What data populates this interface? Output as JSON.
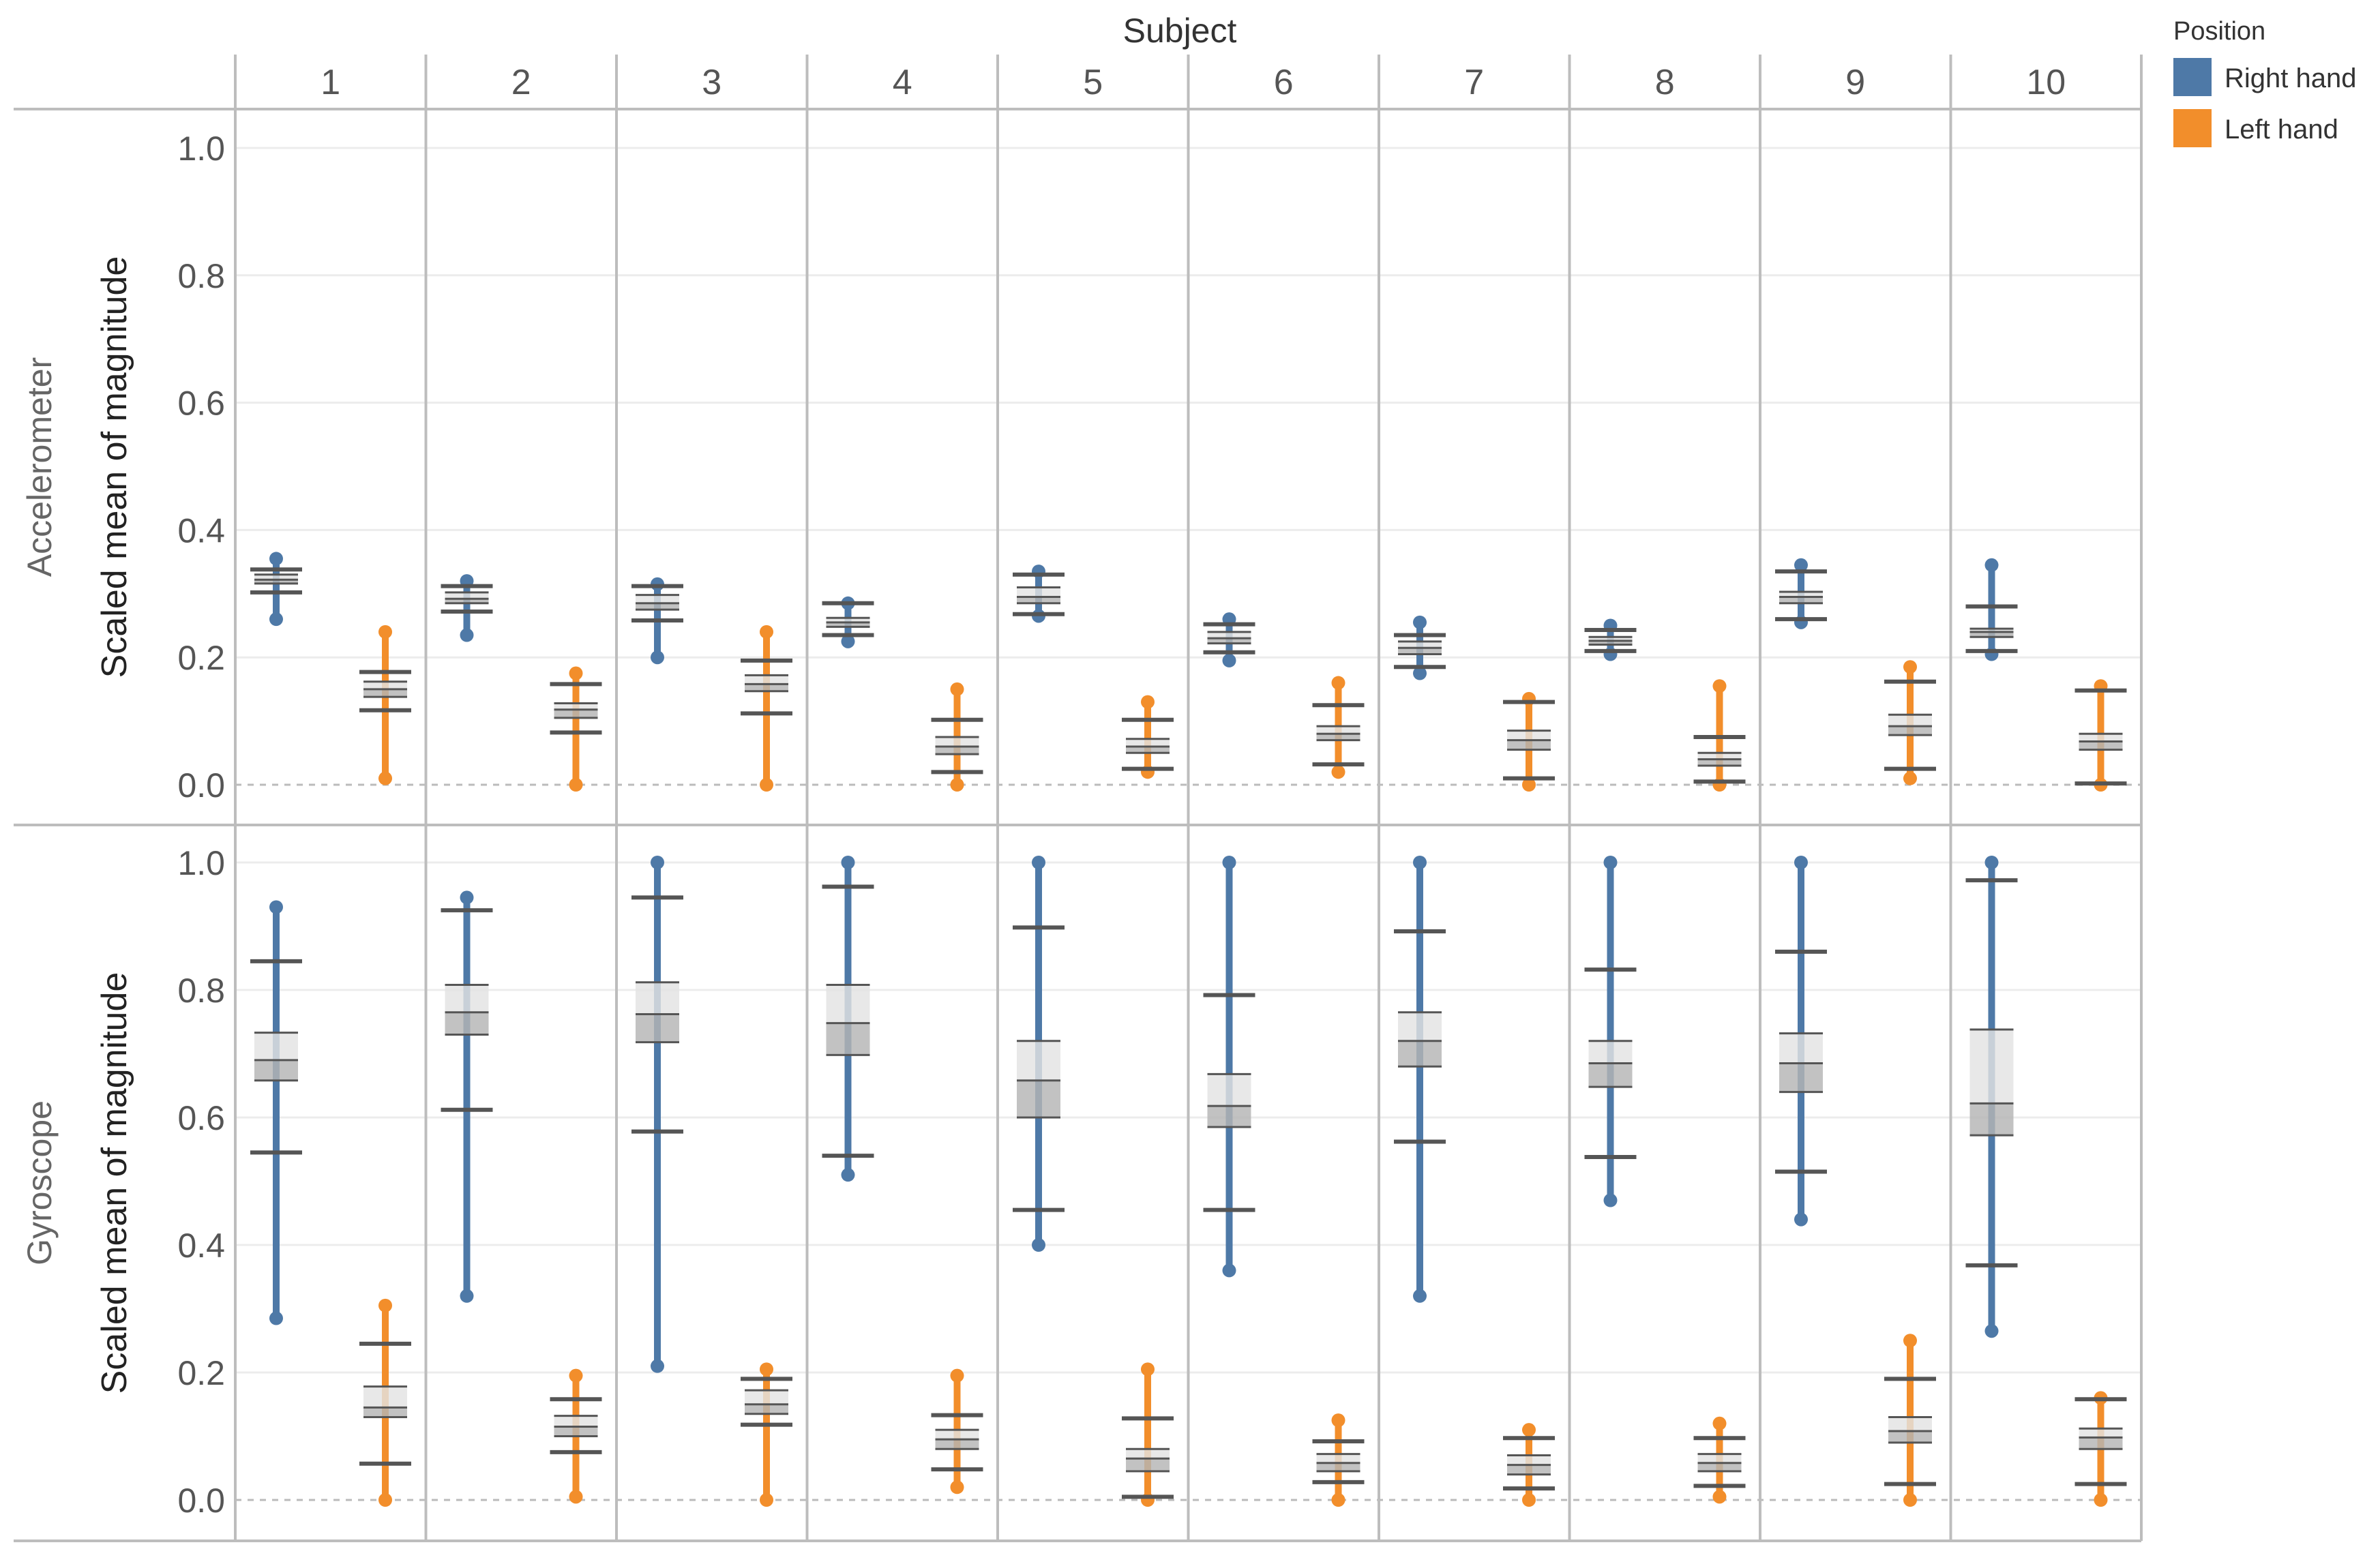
{
  "chart_data": {
    "type": "box-and-dot",
    "column_header": "Subject",
    "subjects": [
      "1",
      "2",
      "3",
      "4",
      "5",
      "6",
      "7",
      "8",
      "9",
      "10"
    ],
    "legend": {
      "title": "Position",
      "items": [
        {
          "label": "Right hand",
          "color": "#4e79a7"
        },
        {
          "label": "Left hand",
          "color": "#f28e2b"
        }
      ]
    },
    "y_axis": {
      "label": "Scaled mean of magnitude",
      "ticks": [
        "0.0",
        "0.2",
        "0.4",
        "0.6",
        "0.8",
        "1.0"
      ],
      "range": [
        0,
        1
      ]
    },
    "panels": [
      {
        "name": "Accelerometer",
        "stats": [
          {
            "right": [
              0.302,
              0.316,
              0.322,
              0.33,
              0.338
            ],
            "left": [
              0.117,
              0.138,
              0.15,
              0.162,
              0.177
            ]
          },
          {
            "right": [
              0.272,
              0.285,
              0.292,
              0.302,
              0.312
            ],
            "left": [
              0.082,
              0.105,
              0.118,
              0.128,
              0.158
            ]
          },
          {
            "right": [
              0.258,
              0.275,
              0.285,
              0.298,
              0.312
            ],
            "left": [
              0.112,
              0.147,
              0.158,
              0.172,
              0.195
            ]
          },
          {
            "right": [
              0.235,
              0.248,
              0.255,
              0.262,
              0.285
            ],
            "left": [
              0.02,
              0.048,
              0.06,
              0.075,
              0.102
            ]
          },
          {
            "right": [
              0.268,
              0.285,
              0.295,
              0.31,
              0.33
            ],
            "left": [
              0.025,
              0.05,
              0.06,
              0.072,
              0.102
            ]
          },
          {
            "right": [
              0.208,
              0.222,
              0.23,
              0.24,
              0.252
            ],
            "left": [
              0.032,
              0.07,
              0.08,
              0.092,
              0.125
            ]
          },
          {
            "right": [
              0.185,
              0.205,
              0.215,
              0.225,
              0.235
            ],
            "left": [
              0.01,
              0.055,
              0.07,
              0.085,
              0.13
            ]
          },
          {
            "right": [
              0.21,
              0.22,
              0.226,
              0.232,
              0.243
            ],
            "left": [
              0.005,
              0.03,
              0.04,
              0.05,
              0.075
            ]
          },
          {
            "right": [
              0.26,
              0.285,
              0.295,
              0.303,
              0.335
            ],
            "left": [
              0.025,
              0.078,
              0.092,
              0.11,
              0.162
            ]
          },
          {
            "right": [
              0.21,
              0.232,
              0.24,
              0.245,
              0.28
            ],
            "left": [
              0.002,
              0.055,
              0.068,
              0.08,
              0.148
            ]
          }
        ],
        "points": [
          {
            "right": [
              0.26,
              0.355
            ],
            "left": [
              0.01,
              0.24
            ]
          },
          {
            "right": [
              0.235,
              0.32
            ],
            "left": [
              0.0,
              0.175
            ]
          },
          {
            "right": [
              0.2,
              0.315
            ],
            "left": [
              0.0,
              0.24
            ]
          },
          {
            "right": [
              0.225,
              0.285
            ],
            "left": [
              0.0,
              0.15
            ]
          },
          {
            "right": [
              0.265,
              0.335
            ],
            "left": [
              0.02,
              0.13
            ]
          },
          {
            "right": [
              0.195,
              0.26
            ],
            "left": [
              0.02,
              0.16
            ]
          },
          {
            "right": [
              0.175,
              0.255
            ],
            "left": [
              0.0,
              0.135
            ]
          },
          {
            "right": [
              0.205,
              0.25
            ],
            "left": [
              0.0,
              0.155
            ]
          },
          {
            "right": [
              0.255,
              0.345
            ],
            "left": [
              0.01,
              0.185
            ]
          },
          {
            "right": [
              0.205,
              0.345
            ],
            "left": [
              0.0,
              0.155
            ]
          }
        ]
      },
      {
        "name": "Gyroscope",
        "stats": [
          {
            "right": [
              0.545,
              0.658,
              0.69,
              0.733,
              0.845
            ],
            "left": [
              0.057,
              0.13,
              0.145,
              0.178,
              0.245
            ]
          },
          {
            "right": [
              0.612,
              0.73,
              0.765,
              0.808,
              0.925
            ],
            "left": [
              0.075,
              0.1,
              0.115,
              0.132,
              0.158
            ]
          },
          {
            "right": [
              0.578,
              0.718,
              0.762,
              0.812,
              0.945
            ],
            "left": [
              0.118,
              0.135,
              0.15,
              0.172,
              0.19
            ]
          },
          {
            "right": [
              0.54,
              0.698,
              0.748,
              0.808,
              0.962
            ],
            "left": [
              0.048,
              0.08,
              0.095,
              0.11,
              0.133
            ]
          },
          {
            "right": [
              0.455,
              0.6,
              0.658,
              0.72,
              0.898
            ],
            "left": [
              0.005,
              0.045,
              0.065,
              0.08,
              0.128
            ]
          },
          {
            "right": [
              0.455,
              0.585,
              0.618,
              0.668,
              0.792
            ],
            "left": [
              0.028,
              0.045,
              0.058,
              0.072,
              0.092
            ]
          },
          {
            "right": [
              0.562,
              0.68,
              0.72,
              0.765,
              0.892
            ],
            "left": [
              0.018,
              0.04,
              0.055,
              0.07,
              0.097
            ]
          },
          {
            "right": [
              0.538,
              0.648,
              0.685,
              0.72,
              0.832
            ],
            "left": [
              0.022,
              0.045,
              0.058,
              0.072,
              0.097
            ]
          },
          {
            "right": [
              0.515,
              0.64,
              0.685,
              0.732,
              0.86
            ],
            "left": [
              0.025,
              0.09,
              0.108,
              0.13,
              0.19
            ]
          },
          {
            "right": [
              0.368,
              0.572,
              0.622,
              0.738,
              0.972
            ],
            "left": [
              0.025,
              0.08,
              0.098,
              0.112,
              0.158
            ]
          }
        ],
        "points": [
          {
            "right": [
              0.285,
              0.93
            ],
            "left": [
              0.0,
              0.305
            ]
          },
          {
            "right": [
              0.32,
              0.945
            ],
            "left": [
              0.005,
              0.195
            ]
          },
          {
            "right": [
              0.21,
              1.0
            ],
            "left": [
              0.0,
              0.205
            ]
          },
          {
            "right": [
              0.51,
              1.0
            ],
            "left": [
              0.02,
              0.195
            ]
          },
          {
            "right": [
              0.4,
              1.0
            ],
            "left": [
              0.0,
              0.205
            ]
          },
          {
            "right": [
              0.36,
              1.0
            ],
            "left": [
              0.0,
              0.125
            ]
          },
          {
            "right": [
              0.32,
              1.0
            ],
            "left": [
              0.0,
              0.11
            ]
          },
          {
            "right": [
              0.47,
              1.0
            ],
            "left": [
              0.005,
              0.12
            ]
          },
          {
            "right": [
              0.44,
              1.0
            ],
            "left": [
              0.0,
              0.25
            ]
          },
          {
            "right": [
              0.265,
              1.0
            ],
            "left": [
              0.0,
              0.16
            ]
          }
        ]
      }
    ],
    "stat_order": [
      "whisker_low",
      "q1",
      "median",
      "q3",
      "whisker_high"
    ]
  }
}
